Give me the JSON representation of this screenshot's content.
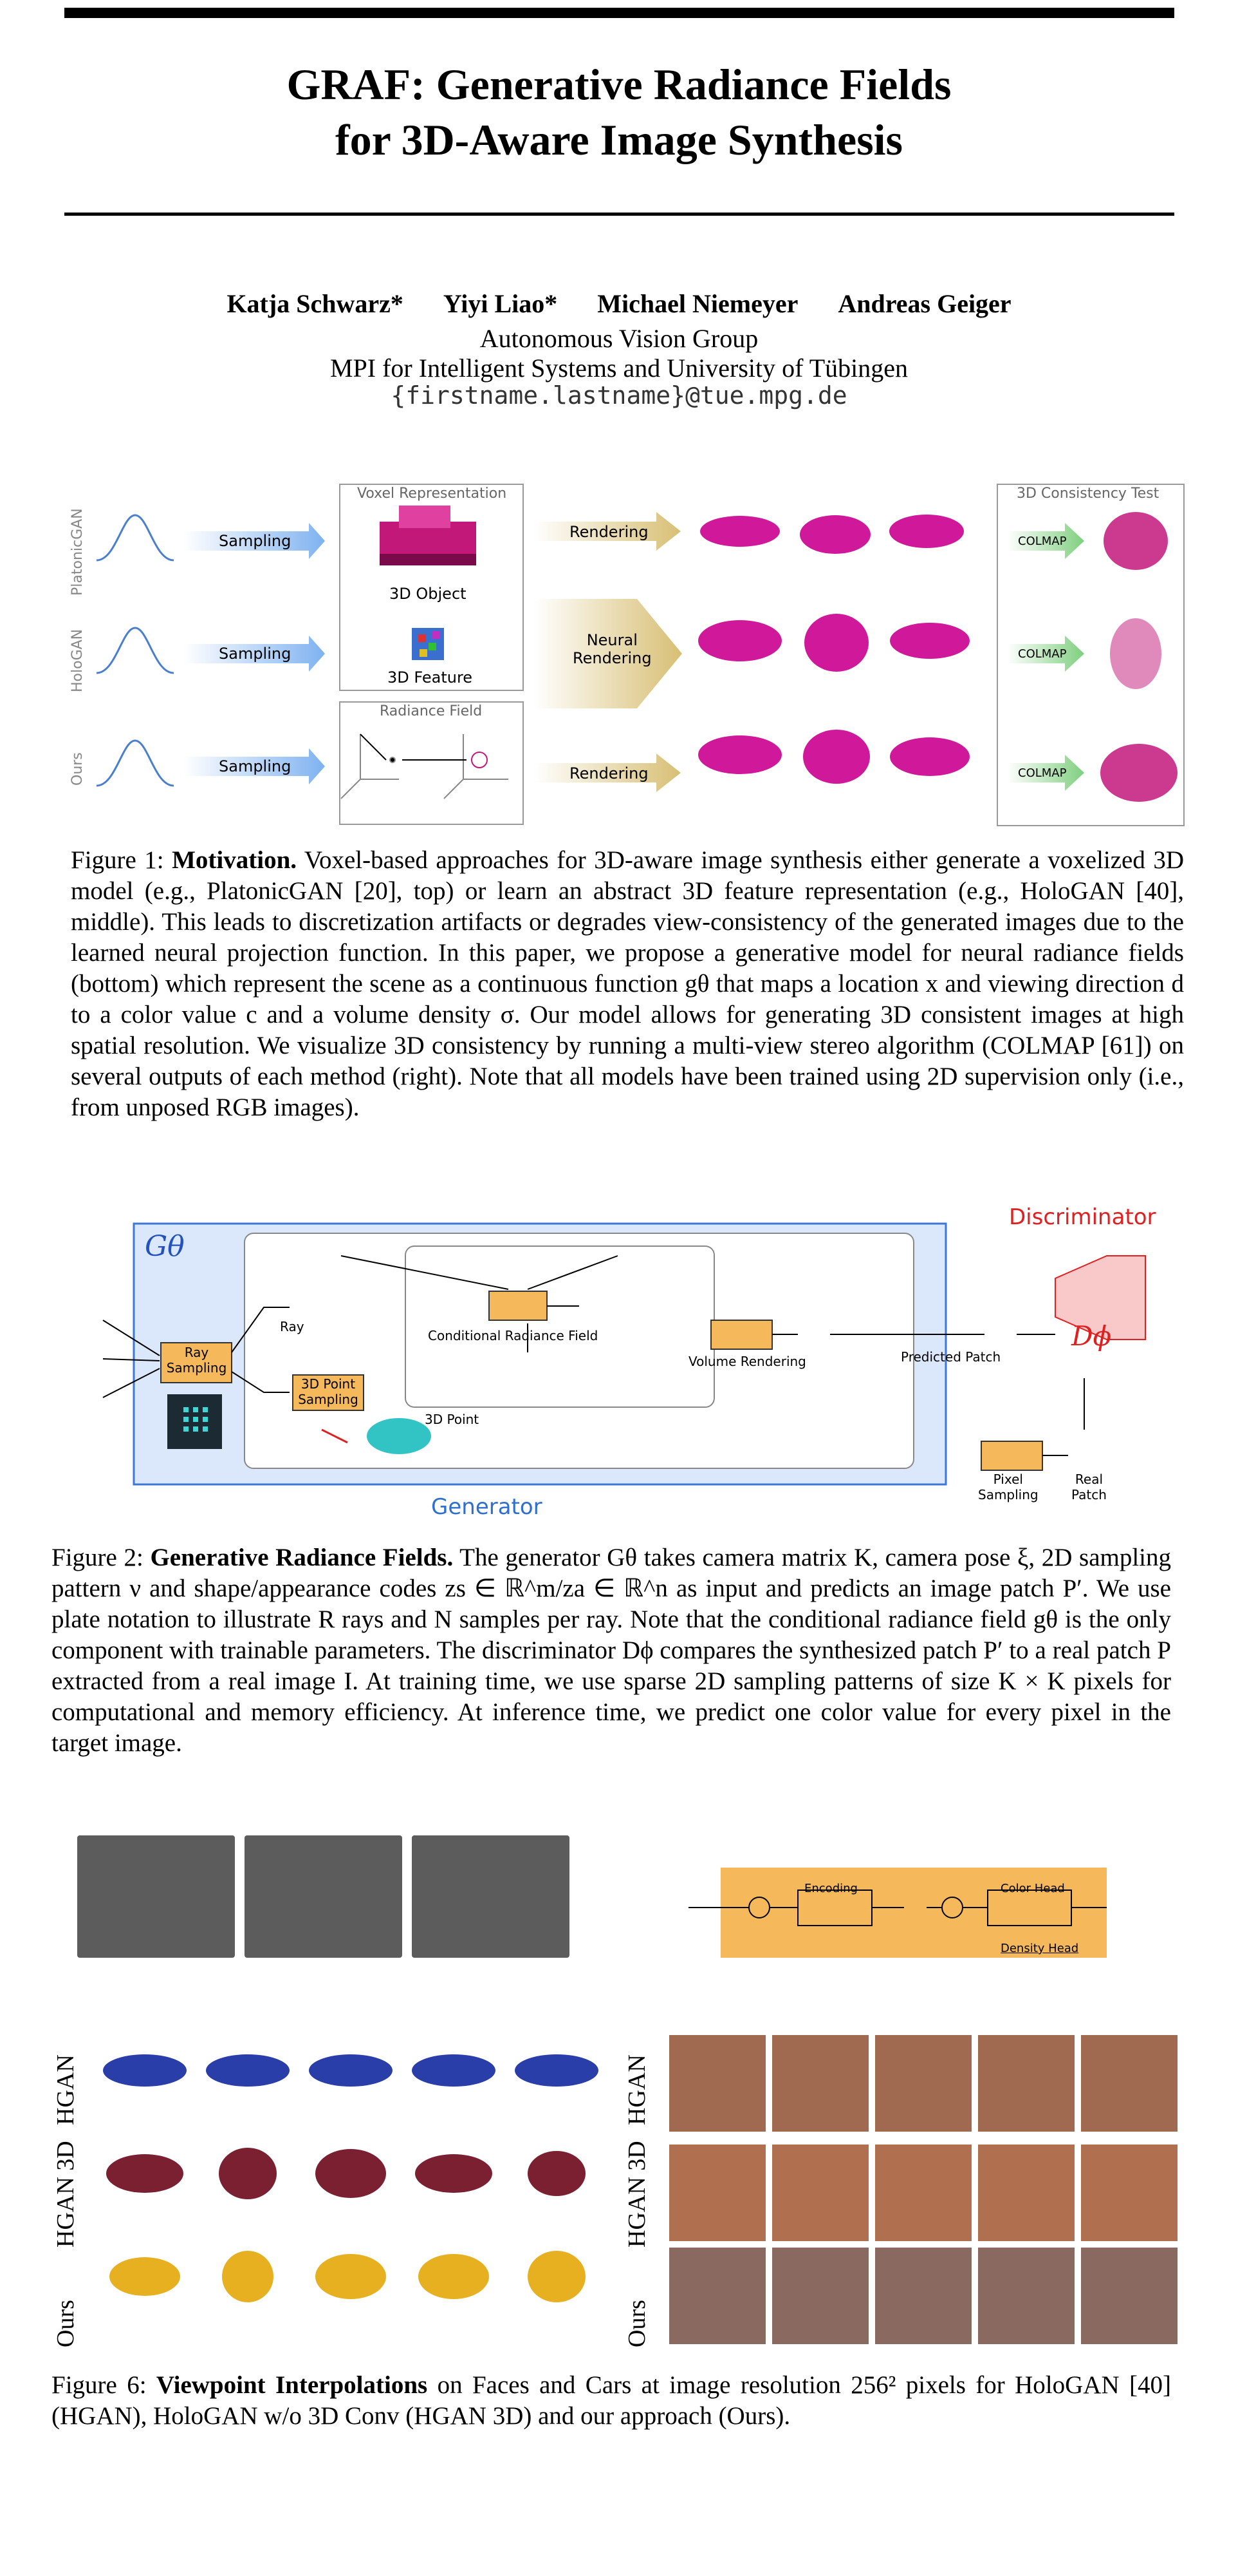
{
  "paper": {
    "title_line1": "GRAF: Generative Radiance Fields",
    "title_line2": "for 3D-Aware Image Synthesis",
    "authors": [
      "Katja Schwarz*",
      "Yiyi Liao*",
      "Michael Niemeyer",
      "Andreas Geiger"
    ],
    "affiliation_line1": "Autonomous Vision Group",
    "affiliation_line2": "MPI for Intelligent Systems and University of Tübingen",
    "email": "{firstname.lastname}@tue.mpg.de"
  },
  "fig1": {
    "row_labels": [
      "PlatonicGAN",
      "HoloGAN",
      "Ours"
    ],
    "sampling_label": "Sampling",
    "rendering_label": "Rendering",
    "neural_rendering_label": "Neural\nRendering",
    "voxel_box_title": "Voxel Representation",
    "object_label": "3D Object",
    "feature_label": "3D Feature",
    "radiance_box_title": "Radiance Field",
    "consistency_box_title": "3D Consistency Test",
    "colmap_label": "COLMAP",
    "caption_label": "Figure 1:",
    "caption_bold": "Motivation.",
    "caption_text": "Voxel-based approaches for 3D-aware image synthesis either generate a voxelized 3D model (e.g., PlatonicGAN [20], top) or learn an abstract 3D feature representation (e.g., HoloGAN [40], middle). This leads to discretization artifacts or degrades view-consistency of the generated images due to the learned neural projection function. In this paper, we propose a generative model for neural radiance fields (bottom) which represent the scene as a continuous function gθ that maps a location x and viewing direction d to a color value c and a volume density σ. Our model allows for generating 3D consistent images at high spatial resolution. We visualize 3D consistency by running a multi-view stereo algorithm (COLMAP [61]) on several outputs of each method (right). Note that all models have been trained using 2D supervision only (i.e., from unposed RGB images)."
  },
  "fig2": {
    "generator_symbol": "Gθ",
    "generator_label": "Generator",
    "discriminator_label": "Discriminator",
    "discriminator_symbol": "Dϕ",
    "ray_sampling": "Ray\nSampling",
    "point_sampling": "3D Point\nSampling",
    "ray_label": "Ray",
    "point_label": "3D Point",
    "crf_label": "Conditional Radiance Field",
    "volume_rendering": "Volume Rendering",
    "predicted_patch": "Predicted Patch",
    "pixel_sampling": "Pixel\nSampling",
    "real_patch": "Real\nPatch",
    "caption_label": "Figure 2:",
    "caption_bold": "Generative Radiance Fields.",
    "caption_text": "The generator Gθ takes camera matrix K, camera pose ξ, 2D sampling pattern ν and shape/appearance codes zs ∈ ℝ^m/za ∈ ℝ^n as input and predicts an image patch P′. We use plate notation to illustrate R rays and N samples per ray. Note that the conditional radiance field gθ is the only component with trainable parameters. The discriminator Dϕ compares the synthesized patch P′ to a real patch P extracted from a real image I. At training time, we use sparse 2D sampling patterns of size K × K pixels for computational and memory efficiency. At inference time, we predict one color value for every pixel in the target image."
  },
  "fig_mid": {
    "encoding_label": "Encoding",
    "color_head": "Color Head",
    "density_head": "Density Head"
  },
  "fig6": {
    "row_labels_left": [
      "HGAN",
      "HGAN 3D",
      "Ours"
    ],
    "row_labels_right": [
      "HGAN",
      "HGAN 3D",
      "Ours"
    ],
    "caption_label": "Figure 6:",
    "caption_bold": "Viewpoint Interpolations",
    "caption_text": "on Faces and Cars at image resolution 256² pixels for HoloGAN [40] (HGAN), HoloGAN w/o 3D Conv (HGAN 3D) and our approach (Ours)."
  },
  "colors": {
    "sampling_arrow": "#7fb2f0",
    "rendering_arrow": "#d8bf75",
    "colmap_arrow": "#7fcf7f",
    "car_magenta": "#d0189a",
    "generator_fill": "#dbe7fb",
    "generator_border": "#3b78d8",
    "orange_box": "#f5b95c",
    "discriminator_red": "#e02020",
    "citation_green": "#19b019"
  }
}
